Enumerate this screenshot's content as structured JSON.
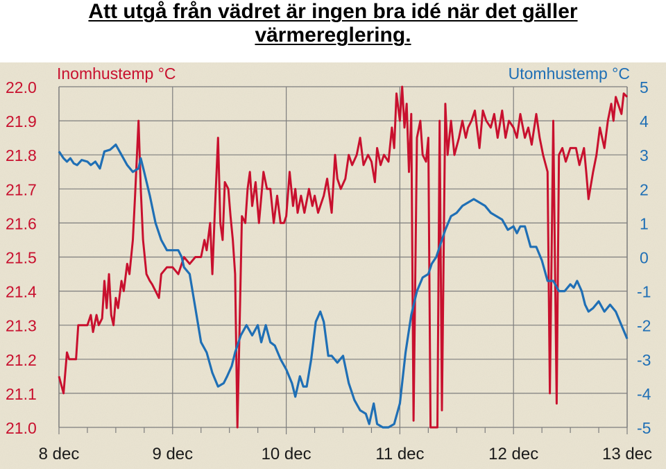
{
  "headline": {
    "line1": "Att utgå från vädret är ingen bra idé när det gäller",
    "line2": "värmereglering."
  },
  "colors": {
    "background": "#ece6d3",
    "indoor": "#c8102e",
    "outdoor": "#1f6fb5",
    "grid": "#7d7d7d",
    "axis_text": "#c8102e",
    "right_axis_text": "#1f6fb5"
  },
  "chart_data": {
    "type": "line",
    "title": "",
    "grid": true,
    "x_ticks": [
      "8 dec",
      "9 dec",
      "10 dec",
      "11 dec",
      "12 dec",
      "13 dec"
    ],
    "xlim": [
      8,
      13
    ],
    "left_axis": {
      "label": "Inomhustemp °C",
      "ylim": [
        21.0,
        22.0
      ],
      "ticks": [
        "21.0",
        "21.1",
        "21.2",
        "21.3",
        "21.4",
        "21.5",
        "21.6",
        "21.7",
        "21.8",
        "21.9",
        "22.0"
      ]
    },
    "right_axis": {
      "label": "Utomhustemp °C",
      "ylim": [
        -5,
        5
      ],
      "ticks": [
        "-5",
        "-4",
        "-3",
        "-2",
        "-1",
        "0",
        "1",
        "2",
        "3",
        "4",
        "5"
      ]
    },
    "series": [
      {
        "name": "Inomhustemp °C",
        "axis": "left",
        "points": [
          [
            8.0,
            21.15
          ],
          [
            8.04,
            21.1
          ],
          [
            8.07,
            21.22
          ],
          [
            8.09,
            21.2
          ],
          [
            8.12,
            21.2
          ],
          [
            8.15,
            21.2
          ],
          [
            8.17,
            21.3
          ],
          [
            8.2,
            21.3
          ],
          [
            8.25,
            21.3
          ],
          [
            8.28,
            21.33
          ],
          [
            8.3,
            21.28
          ],
          [
            8.33,
            21.33
          ],
          [
            8.35,
            21.3
          ],
          [
            8.38,
            21.32
          ],
          [
            8.4,
            21.43
          ],
          [
            8.42,
            21.35
          ],
          [
            8.44,
            21.45
          ],
          [
            8.46,
            21.33
          ],
          [
            8.48,
            21.3
          ],
          [
            8.5,
            21.38
          ],
          [
            8.52,
            21.35
          ],
          [
            8.55,
            21.43
          ],
          [
            8.57,
            21.4
          ],
          [
            8.6,
            21.48
          ],
          [
            8.62,
            21.45
          ],
          [
            8.65,
            21.55
          ],
          [
            8.67,
            21.68
          ],
          [
            8.7,
            21.9
          ],
          [
            8.72,
            21.7
          ],
          [
            8.74,
            21.55
          ],
          [
            8.77,
            21.45
          ],
          [
            8.8,
            21.43
          ],
          [
            8.82,
            21.42
          ],
          [
            8.85,
            21.4
          ],
          [
            8.88,
            21.38
          ],
          [
            8.9,
            21.45
          ],
          [
            8.95,
            21.47
          ],
          [
            9.0,
            21.47
          ],
          [
            9.05,
            21.45
          ],
          [
            9.1,
            21.5
          ],
          [
            9.15,
            21.48
          ],
          [
            9.2,
            21.5
          ],
          [
            9.25,
            21.5
          ],
          [
            9.28,
            21.55
          ],
          [
            9.3,
            21.52
          ],
          [
            9.33,
            21.6
          ],
          [
            9.35,
            21.45
          ],
          [
            9.37,
            21.62
          ],
          [
            9.4,
            21.85
          ],
          [
            9.42,
            21.6
          ],
          [
            9.44,
            21.55
          ],
          [
            9.46,
            21.72
          ],
          [
            9.49,
            21.7
          ],
          [
            9.51,
            21.62
          ],
          [
            9.53,
            21.55
          ],
          [
            9.55,
            21.45
          ],
          [
            9.57,
            21.0
          ],
          [
            9.59,
            21.3
          ],
          [
            9.61,
            21.62
          ],
          [
            9.64,
            21.6
          ],
          [
            9.66,
            21.7
          ],
          [
            9.68,
            21.75
          ],
          [
            9.7,
            21.65
          ],
          [
            9.73,
            21.72
          ],
          [
            9.76,
            21.6
          ],
          [
            9.8,
            21.75
          ],
          [
            9.83,
            21.7
          ],
          [
            9.86,
            21.7
          ],
          [
            9.89,
            21.6
          ],
          [
            9.92,
            21.68
          ],
          [
            9.95,
            21.6
          ],
          [
            9.98,
            21.6
          ],
          [
            10.0,
            21.62
          ],
          [
            10.03,
            21.75
          ],
          [
            10.06,
            21.65
          ],
          [
            10.08,
            21.7
          ],
          [
            10.1,
            21.63
          ],
          [
            10.13,
            21.68
          ],
          [
            10.16,
            21.63
          ],
          [
            10.2,
            21.7
          ],
          [
            10.23,
            21.65
          ],
          [
            10.25,
            21.68
          ],
          [
            10.28,
            21.63
          ],
          [
            10.3,
            21.65
          ],
          [
            10.33,
            21.68
          ],
          [
            10.36,
            21.73
          ],
          [
            10.4,
            21.63
          ],
          [
            10.43,
            21.8
          ],
          [
            10.45,
            21.73
          ],
          [
            10.48,
            21.7
          ],
          [
            10.52,
            21.73
          ],
          [
            10.55,
            21.8
          ],
          [
            10.58,
            21.77
          ],
          [
            10.62,
            21.8
          ],
          [
            10.65,
            21.85
          ],
          [
            10.68,
            21.77
          ],
          [
            10.72,
            21.8
          ],
          [
            10.75,
            21.78
          ],
          [
            10.78,
            21.72
          ],
          [
            10.8,
            21.82
          ],
          [
            10.83,
            21.77
          ],
          [
            10.86,
            21.8
          ],
          [
            10.9,
            21.78
          ],
          [
            10.93,
            21.88
          ],
          [
            10.95,
            21.82
          ],
          [
            10.97,
            21.98
          ],
          [
            11.0,
            21.9
          ],
          [
            11.02,
            22.0
          ],
          [
            11.04,
            21.88
          ],
          [
            11.06,
            21.95
          ],
          [
            11.08,
            21.75
          ],
          [
            11.1,
            21.92
          ],
          [
            11.12,
            21.02
          ],
          [
            11.15,
            21.85
          ],
          [
            11.18,
            21.9
          ],
          [
            11.2,
            21.8
          ],
          [
            11.23,
            21.78
          ],
          [
            11.25,
            21.85
          ],
          [
            11.27,
            21.0
          ],
          [
            11.3,
            21.0
          ],
          [
            11.33,
            21.0
          ],
          [
            11.35,
            21.9
          ],
          [
            11.37,
            21.05
          ],
          [
            11.4,
            21.95
          ],
          [
            11.42,
            21.8
          ],
          [
            11.45,
            21.9
          ],
          [
            11.48,
            21.8
          ],
          [
            11.52,
            21.85
          ],
          [
            11.55,
            21.9
          ],
          [
            11.58,
            21.85
          ],
          [
            11.6,
            21.88
          ],
          [
            11.63,
            21.9
          ],
          [
            11.66,
            21.93
          ],
          [
            11.7,
            21.82
          ],
          [
            11.73,
            21.93
          ],
          [
            11.76,
            21.9
          ],
          [
            11.8,
            21.88
          ],
          [
            11.83,
            21.92
          ],
          [
            11.86,
            21.85
          ],
          [
            11.9,
            21.93
          ],
          [
            11.93,
            21.85
          ],
          [
            11.96,
            21.9
          ],
          [
            12.0,
            21.88
          ],
          [
            12.03,
            21.85
          ],
          [
            12.06,
            21.92
          ],
          [
            12.1,
            21.85
          ],
          [
            12.13,
            21.88
          ],
          [
            12.16,
            21.83
          ],
          [
            12.2,
            21.92
          ],
          [
            12.23,
            21.85
          ],
          [
            12.26,
            21.8
          ],
          [
            12.3,
            21.75
          ],
          [
            12.32,
            21.1
          ],
          [
            12.35,
            21.9
          ],
          [
            12.38,
            21.07
          ],
          [
            12.4,
            21.8
          ],
          [
            12.43,
            21.82
          ],
          [
            12.46,
            21.78
          ],
          [
            12.5,
            21.82
          ],
          [
            12.55,
            21.82
          ],
          [
            12.58,
            21.77
          ],
          [
            12.62,
            21.82
          ],
          [
            12.64,
            21.75
          ],
          [
            12.66,
            21.67
          ],
          [
            12.7,
            21.75
          ],
          [
            12.73,
            21.8
          ],
          [
            12.76,
            21.88
          ],
          [
            12.8,
            21.82
          ],
          [
            12.83,
            21.9
          ],
          [
            12.86,
            21.95
          ],
          [
            12.88,
            21.9
          ],
          [
            12.9,
            21.97
          ],
          [
            12.92,
            21.95
          ],
          [
            12.95,
            21.92
          ],
          [
            12.97,
            21.98
          ],
          [
            13.0,
            21.97
          ]
        ]
      },
      {
        "name": "Utomhustemp °C",
        "axis": "right",
        "points": [
          [
            8.0,
            3.1
          ],
          [
            8.04,
            2.9
          ],
          [
            8.07,
            2.8
          ],
          [
            8.1,
            2.9
          ],
          [
            8.13,
            2.75
          ],
          [
            8.16,
            2.7
          ],
          [
            8.2,
            2.85
          ],
          [
            8.25,
            2.8
          ],
          [
            8.28,
            2.7
          ],
          [
            8.32,
            2.8
          ],
          [
            8.36,
            2.6
          ],
          [
            8.4,
            3.1
          ],
          [
            8.45,
            3.15
          ],
          [
            8.5,
            3.3
          ],
          [
            8.55,
            3.0
          ],
          [
            8.6,
            2.7
          ],
          [
            8.65,
            2.5
          ],
          [
            8.7,
            2.6
          ],
          [
            8.72,
            2.9
          ],
          [
            8.75,
            2.5
          ],
          [
            8.8,
            1.8
          ],
          [
            8.85,
            1.0
          ],
          [
            8.9,
            0.5
          ],
          [
            8.95,
            0.2
          ],
          [
            9.0,
            0.2
          ],
          [
            9.05,
            0.2
          ],
          [
            9.08,
            0.0
          ],
          [
            9.1,
            -0.3
          ],
          [
            9.15,
            -0.5
          ],
          [
            9.2,
            -1.5
          ],
          [
            9.25,
            -2.5
          ],
          [
            9.3,
            -2.8
          ],
          [
            9.35,
            -3.4
          ],
          [
            9.4,
            -3.8
          ],
          [
            9.45,
            -3.7
          ],
          [
            9.48,
            -3.5
          ],
          [
            9.52,
            -3.2
          ],
          [
            9.55,
            -2.8
          ],
          [
            9.6,
            -2.3
          ],
          [
            9.65,
            -2.0
          ],
          [
            9.7,
            -2.3
          ],
          [
            9.75,
            -2.0
          ],
          [
            9.78,
            -2.5
          ],
          [
            9.82,
            -2.0
          ],
          [
            9.86,
            -2.5
          ],
          [
            9.9,
            -2.6
          ],
          [
            9.95,
            -3.0
          ],
          [
            10.0,
            -3.3
          ],
          [
            10.05,
            -3.7
          ],
          [
            10.08,
            -4.1
          ],
          [
            10.12,
            -3.5
          ],
          [
            10.15,
            -3.8
          ],
          [
            10.18,
            -3.8
          ],
          [
            10.22,
            -3.0
          ],
          [
            10.26,
            -1.9
          ],
          [
            10.3,
            -1.6
          ],
          [
            10.33,
            -1.9
          ],
          [
            10.37,
            -2.9
          ],
          [
            10.4,
            -2.9
          ],
          [
            10.45,
            -3.1
          ],
          [
            10.5,
            -2.9
          ],
          [
            10.55,
            -3.7
          ],
          [
            10.6,
            -4.2
          ],
          [
            10.65,
            -4.5
          ],
          [
            10.7,
            -4.6
          ],
          [
            10.73,
            -4.9
          ],
          [
            10.77,
            -4.3
          ],
          [
            10.8,
            -4.9
          ],
          [
            10.85,
            -5.0
          ],
          [
            10.9,
            -5.0
          ],
          [
            10.95,
            -4.9
          ],
          [
            11.0,
            -4.3
          ],
          [
            11.05,
            -2.8
          ],
          [
            11.1,
            -1.7
          ],
          [
            11.15,
            -1.0
          ],
          [
            11.2,
            -0.6
          ],
          [
            11.25,
            -0.5
          ],
          [
            11.28,
            -0.2
          ],
          [
            11.32,
            0.0
          ],
          [
            11.35,
            0.3
          ],
          [
            11.4,
            0.8
          ],
          [
            11.45,
            1.2
          ],
          [
            11.5,
            1.3
          ],
          [
            11.55,
            1.5
          ],
          [
            11.6,
            1.6
          ],
          [
            11.65,
            1.7
          ],
          [
            11.7,
            1.6
          ],
          [
            11.75,
            1.5
          ],
          [
            11.8,
            1.3
          ],
          [
            11.85,
            1.2
          ],
          [
            11.9,
            1.1
          ],
          [
            11.95,
            0.8
          ],
          [
            12.0,
            0.9
          ],
          [
            12.03,
            0.7
          ],
          [
            12.06,
            0.9
          ],
          [
            12.1,
            0.9
          ],
          [
            12.15,
            0.3
          ],
          [
            12.2,
            0.3
          ],
          [
            12.25,
            -0.1
          ],
          [
            12.3,
            -0.7
          ],
          [
            12.35,
            -0.7
          ],
          [
            12.4,
            -1.0
          ],
          [
            12.45,
            -1.0
          ],
          [
            12.5,
            -0.8
          ],
          [
            12.53,
            -0.9
          ],
          [
            12.56,
            -0.7
          ],
          [
            12.6,
            -1.0
          ],
          [
            12.63,
            -1.4
          ],
          [
            12.66,
            -1.6
          ],
          [
            12.7,
            -1.5
          ],
          [
            12.75,
            -1.3
          ],
          [
            12.8,
            -1.6
          ],
          [
            12.85,
            -1.4
          ],
          [
            12.9,
            -1.6
          ],
          [
            12.95,
            -2.0
          ],
          [
            13.0,
            -2.4
          ]
        ]
      }
    ]
  }
}
